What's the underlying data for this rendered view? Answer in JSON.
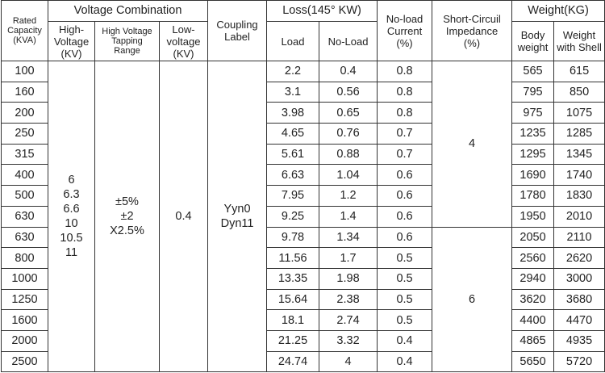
{
  "headers": {
    "rated_capacity": [
      "Rated",
      "Capacity",
      "(KVA)"
    ],
    "voltage_combination": "Voltage Combination",
    "high_voltage": [
      "High-",
      "Voltage",
      "(KV)"
    ],
    "tapping_range": [
      "High Voltage",
      "Tapping",
      "Range"
    ],
    "low_voltage": [
      "Low-",
      "voltage",
      "(KV)"
    ],
    "coupling_label": [
      "Coupling",
      "Label"
    ],
    "loss": "Loss(145° KW)",
    "load": "Load",
    "no_load": "No-Load",
    "no_load_current": [
      "No-load",
      "Current",
      "(%)"
    ],
    "short_circuit": [
      "Short-Circuil",
      "Impedance",
      "(%)"
    ],
    "weight": "Weight(KG)",
    "body_weight": [
      "Body",
      "weight"
    ],
    "weight_with_shell": [
      "Weight",
      "with Shell"
    ]
  },
  "merged": {
    "high_voltage_values": [
      "6",
      "6.3",
      "6.6",
      "10",
      "10.5",
      "11"
    ],
    "tapping_values": [
      "±5%",
      "±2",
      "X2.5%"
    ],
    "low_voltage_value": "0.4",
    "coupling_values": [
      "Yyn0",
      "Dyn11"
    ],
    "impedance_group_1": "4",
    "impedance_group_2": "6"
  },
  "rows": [
    {
      "capacity": "100",
      "load": "2.2",
      "no_load": "0.4",
      "current": "0.8",
      "body": "565",
      "shell": "615"
    },
    {
      "capacity": "160",
      "load": "3.1",
      "no_load": "0.56",
      "current": "0.8",
      "body": "795",
      "shell": "850"
    },
    {
      "capacity": "200",
      "load": "3.98",
      "no_load": "0.65",
      "current": "0.8",
      "body": "975",
      "shell": "1075"
    },
    {
      "capacity": "250",
      "load": "4.65",
      "no_load": "0.76",
      "current": "0.7",
      "body": "1235",
      "shell": "1285"
    },
    {
      "capacity": "315",
      "load": "5.61",
      "no_load": "0.88",
      "current": "0.7",
      "body": "1295",
      "shell": "1345"
    },
    {
      "capacity": "400",
      "load": "6.63",
      "no_load": "1.04",
      "current": "0.6",
      "body": "1690",
      "shell": "1740"
    },
    {
      "capacity": "500",
      "load": "7.95",
      "no_load": "1.2",
      "current": "0.6",
      "body": "1780",
      "shell": "1830"
    },
    {
      "capacity": "630",
      "load": "9.25",
      "no_load": "1.4",
      "current": "0.6",
      "body": "1950",
      "shell": "2010"
    },
    {
      "capacity": "630",
      "load": "9.78",
      "no_load": "1.34",
      "current": "0.6",
      "body": "2050",
      "shell": "2110"
    },
    {
      "capacity": "800",
      "load": "11.56",
      "no_load": "1.7",
      "current": "0.5",
      "body": "2560",
      "shell": "2620"
    },
    {
      "capacity": "1000",
      "load": "13.35",
      "no_load": "1.98",
      "current": "0.5",
      "body": "2940",
      "shell": "3000"
    },
    {
      "capacity": "1250",
      "load": "15.64",
      "no_load": "2.38",
      "current": "0.5",
      "body": "3620",
      "shell": "3680"
    },
    {
      "capacity": "1600",
      "load": "18.1",
      "no_load": "2.74",
      "current": "0.5",
      "body": "4400",
      "shell": "4470"
    },
    {
      "capacity": "2000",
      "load": "21.25",
      "no_load": "3.32",
      "current": "0.4",
      "body": "4865",
      "shell": "4935"
    },
    {
      "capacity": "2500",
      "load": "24.74",
      "no_load": "4",
      "current": "0.4",
      "body": "5650",
      "shell": "5720"
    }
  ]
}
